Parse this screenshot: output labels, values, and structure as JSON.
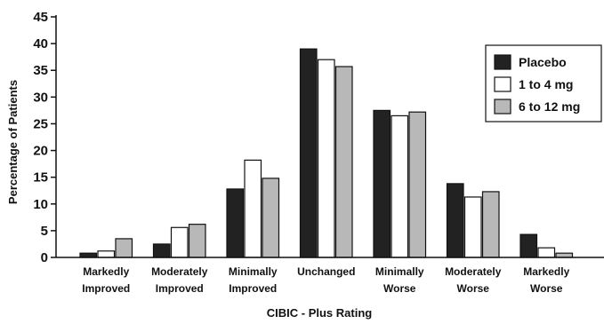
{
  "chart_data": {
    "type": "bar",
    "title": "",
    "xlabel": "CIBIC - Plus Rating",
    "ylabel": "Percentage of Patients",
    "ylim": [
      0,
      45
    ],
    "yticks": [
      "0",
      "5",
      "10",
      "15",
      "20",
      "25",
      "30",
      "35",
      "40",
      "45"
    ],
    "grid": false,
    "legend": "right",
    "categories": [
      [
        "Markedly",
        "Improved"
      ],
      [
        "Moderately",
        "Improved"
      ],
      [
        "Minimally",
        "Improved"
      ],
      [
        "Unchanged"
      ],
      [
        "Minimally",
        "Worse"
      ],
      [
        "Moderately",
        "Worse"
      ],
      [
        "Markedly",
        "Worse"
      ]
    ],
    "series": [
      {
        "name": "Placebo",
        "color": "#222222",
        "values": [
          0.8,
          2.5,
          12.8,
          39.0,
          27.5,
          13.8,
          4.3
        ]
      },
      {
        "name": "1 to 4 mg",
        "color": "#ffffff",
        "values": [
          1.2,
          5.6,
          18.2,
          37.0,
          26.5,
          11.3,
          1.8
        ]
      },
      {
        "name": "6 to 12 mg",
        "color": "#b8b8b8",
        "values": [
          3.5,
          6.2,
          14.8,
          35.7,
          27.2,
          12.3,
          0.8
        ]
      }
    ]
  }
}
